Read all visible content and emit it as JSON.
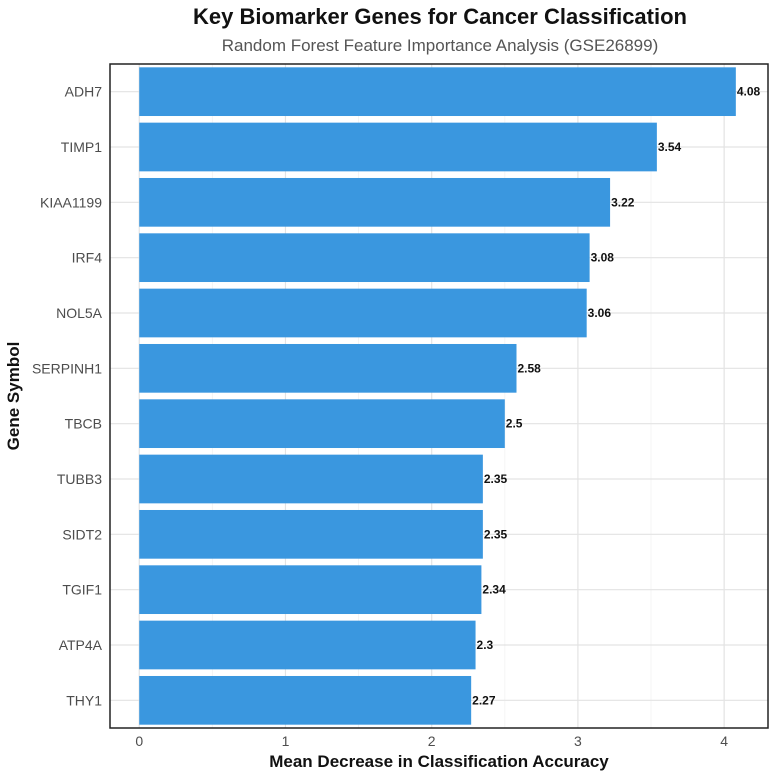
{
  "chart_data": {
    "type": "bar",
    "orientation": "horizontal",
    "title": "Key Biomarker Genes for Cancer Classification",
    "subtitle": "Random Forest Feature Importance Analysis (GSE26899)",
    "xlabel": "Mean Decrease in Classification Accuracy",
    "ylabel": "Gene Symbol",
    "categories": [
      "ADH7",
      "TIMP1",
      "KIAA1199",
      "IRF4",
      "NOL5A",
      "SERPINH1",
      "TBCB",
      "TUBB3",
      "SIDT2",
      "TGIF1",
      "ATP4A",
      "THY1"
    ],
    "values": [
      4.08,
      3.54,
      3.22,
      3.08,
      3.06,
      2.58,
      2.5,
      2.35,
      2.35,
      2.34,
      2.3,
      2.27
    ],
    "value_labels": [
      "4.08",
      "3.54",
      "3.22",
      "3.08",
      "3.06",
      "2.58",
      "2.5",
      "2.35",
      "2.35",
      "2.34",
      "2.3",
      "2.27"
    ],
    "xticks": [
      "0",
      "1",
      "2",
      "3",
      "4"
    ],
    "xlim": [
      -0.2,
      4.3
    ],
    "grid": true,
    "legend": "none",
    "bar_color": "#3a97df"
  }
}
